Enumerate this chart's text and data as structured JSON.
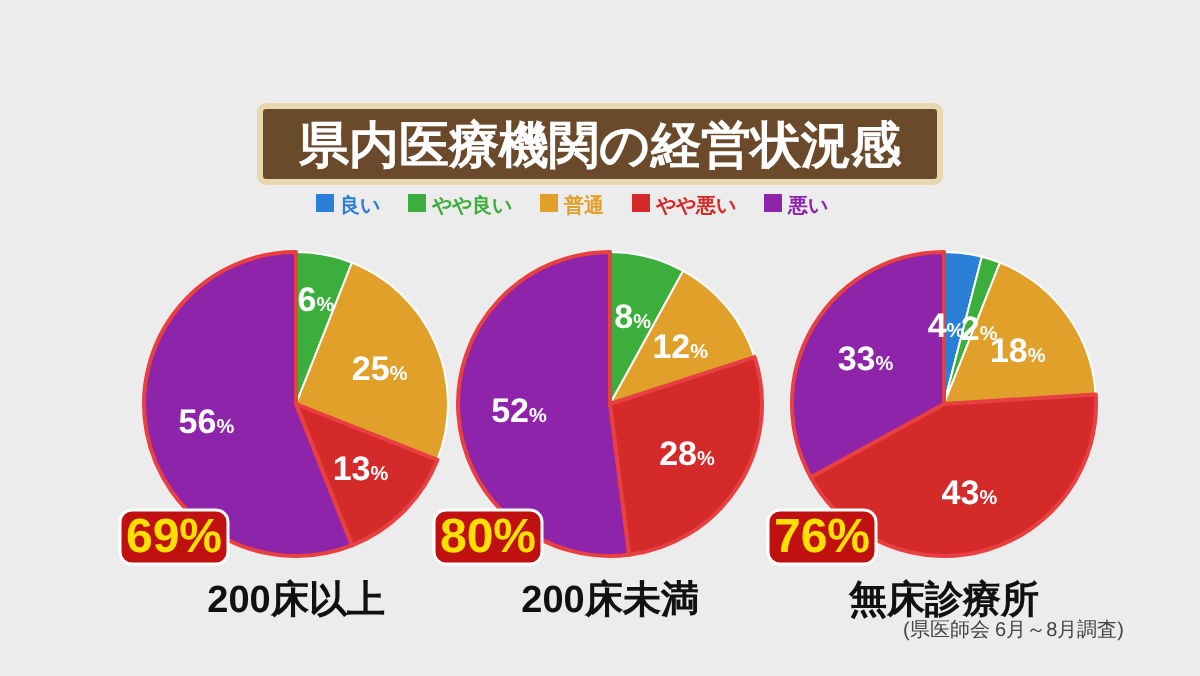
{
  "chart_data": [
    {
      "type": "pie",
      "title": "200床以上",
      "categories": [
        "良い",
        "やや良い",
        "普通",
        "やや悪い",
        "悪い"
      ],
      "values": [
        0,
        6,
        25,
        13,
        56
      ],
      "colors": [
        "#2a7fd6",
        "#3cae3c",
        "#e0a02a",
        "#d42a2a",
        "#8e24aa"
      ],
      "value_labels": [
        null,
        "6%",
        "25%",
        "13%",
        "56%"
      ],
      "legend": "top right",
      "annotations": [
        "県内医療機関の経営状況感",
        "69%"
      ]
    },
    {
      "type": "pie",
      "title": "200床未満",
      "categories": [
        null,
        null,
        null,
        null
      ],
      "values": [
        8,
        12,
        28,
        52
      ],
      "colors": [
        "#3cae3c",
        "#e0a02a",
        "#d42a2a",
        "#8e24aa"
      ],
      "value_labels": [
        "8%",
        "12%",
        "28%",
        "52%"
      ],
      "annotations": [
        "80%"
      ]
    },
    {
      "type": "pie",
      "title": "無床診療所",
      "categories": [
        null,
        null,
        null,
        null,
        null
      ],
      "values": [
        4,
        2,
        18,
        43,
        33
      ],
      "colors": [
        "#2a7fd6",
        "#3cae3c",
        "#e0a02a",
        "#d42a2a",
        "#8e24aa"
      ],
      "value_labels": [
        "4%",
        "2%",
        "18%",
        "43%",
        "33%"
      ],
      "annotations": [
        "76%",
        "(県医師会 6月～8月調査)"
      ]
    }
  ]
}
